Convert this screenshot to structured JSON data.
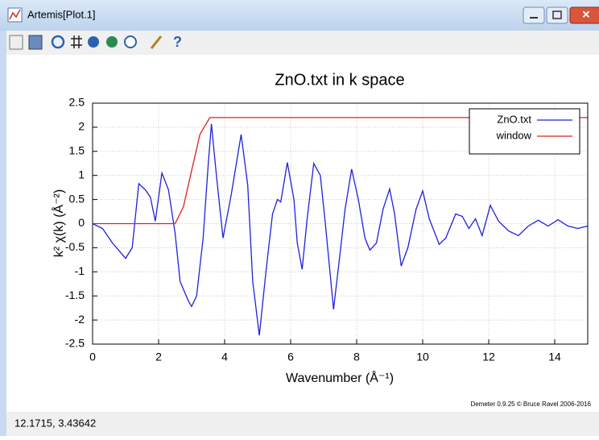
{
  "window": {
    "title": "Artemis[Plot.1]",
    "status": "12.1715,  3.43642",
    "footer": "Demeter 0.9.25 © Bruce Ravel 2006-2016"
  },
  "chart_data": {
    "type": "line",
    "title": "ZnO.txt in k space",
    "xlabel": "Wavenumber   (Å⁻¹)",
    "ylabel": "k² χ(k)   (Å⁻²)",
    "xlim": [
      0,
      15
    ],
    "ylim": [
      -2.5,
      2.5
    ],
    "xticks": [
      0,
      2,
      4,
      6,
      8,
      10,
      12,
      14
    ],
    "yticks": [
      -2.5,
      -2,
      -1.5,
      -1,
      -0.5,
      0,
      0.5,
      1,
      1.5,
      2,
      2.5
    ],
    "grid": true,
    "legend": "upper right",
    "series": [
      {
        "name": "ZnO.txt",
        "color": "#2020e0",
        "x": [
          0,
          0.3,
          0.6,
          1.0,
          1.2,
          1.4,
          1.6,
          1.75,
          1.9,
          2.1,
          2.3,
          2.5,
          2.65,
          2.9,
          3.0,
          3.15,
          3.35,
          3.5,
          3.6,
          3.75,
          3.95,
          4.2,
          4.5,
          4.7,
          4.85,
          5.05,
          5.25,
          5.45,
          5.6,
          5.7,
          5.9,
          6.1,
          6.2,
          6.35,
          6.5,
          6.7,
          6.9,
          7.05,
          7.3,
          7.5,
          7.65,
          7.85,
          8.05,
          8.25,
          8.4,
          8.6,
          8.8,
          9.0,
          9.15,
          9.35,
          9.55,
          9.8,
          10.0,
          10.2,
          10.5,
          10.7,
          11.0,
          11.2,
          11.4,
          11.6,
          11.8,
          12.05,
          12.3,
          12.6,
          12.9,
          13.2,
          13.5,
          13.8,
          14.1,
          14.4,
          14.7,
          15.0
        ],
        "values": [
          0,
          -0.1,
          -0.4,
          -0.72,
          -0.5,
          0.83,
          0.7,
          0.55,
          0.05,
          1.05,
          0.7,
          -0.2,
          -1.2,
          -1.6,
          -1.72,
          -1.5,
          -0.3,
          1.2,
          2.07,
          1.0,
          -0.3,
          0.6,
          1.85,
          0.8,
          -1.2,
          -2.32,
          -1.0,
          0.2,
          0.5,
          0.45,
          1.27,
          0.5,
          -0.4,
          -0.95,
          0.1,
          1.25,
          1.0,
          0.0,
          -1.78,
          -0.6,
          0.3,
          1.13,
          0.5,
          -0.3,
          -0.55,
          -0.4,
          0.3,
          0.72,
          0.2,
          -0.88,
          -0.5,
          0.3,
          0.68,
          0.1,
          -0.43,
          -0.3,
          0.2,
          0.15,
          -0.1,
          0.1,
          -0.25,
          0.38,
          0.05,
          -0.15,
          -0.25,
          -0.05,
          0.07,
          -0.05,
          0.08,
          -0.05,
          -0.1,
          -0.05
        ]
      },
      {
        "name": "window",
        "color": "#e02020",
        "x": [
          0,
          2.5,
          2.75,
          3.0,
          3.25,
          3.55,
          15
        ],
        "values": [
          0,
          0,
          0.35,
          1.1,
          1.85,
          2.2,
          2.2
        ]
      }
    ]
  }
}
